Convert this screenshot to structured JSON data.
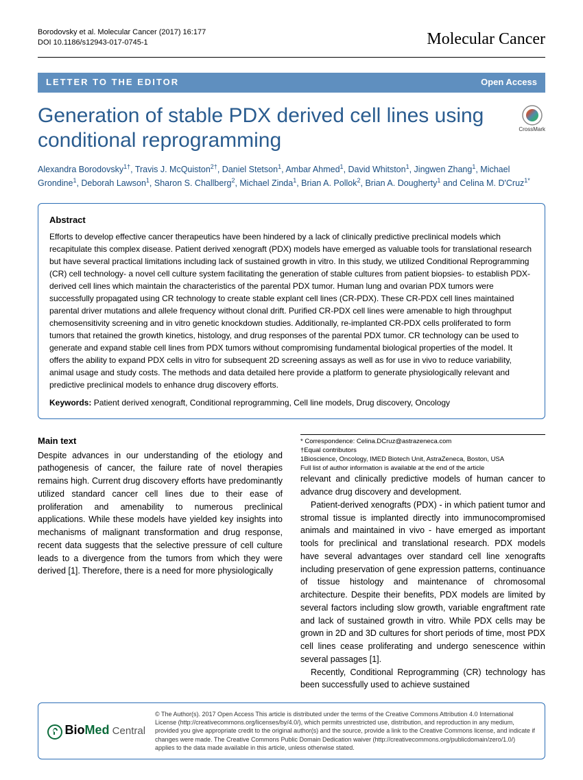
{
  "header": {
    "citation_line1": "Borodovsky et al. Molecular Cancer  (2017) 16:177",
    "citation_line2": "DOI 10.1186/s12943-017-0745-1",
    "journal": "Molecular Cancer"
  },
  "bar": {
    "category": "LETTER TO THE EDITOR",
    "access": "Open Access"
  },
  "title": "Generation of stable PDX derived cell lines using conditional reprogramming",
  "crossmark_label": "CrossMark",
  "authors_html": "Alexandra Borodovsky<sup>1†</sup>, Travis J. McQuiston<sup>2†</sup>, Daniel Stetson<sup>1</sup>, Ambar Ahmed<sup>1</sup>, David Whitston<sup>1</sup>, Jingwen Zhang<sup>1</sup>, Michael Grondine<sup>1</sup>, Deborah Lawson<sup>1</sup>, Sharon S. Challberg<sup>2</sup>, Michael Zinda<sup>1</sup>, Brian A. Pollok<sup>2</sup>, Brian A. Dougherty<sup>1</sup> and Celina M. D'Cruz<sup>1*</sup>",
  "abstract": {
    "heading": "Abstract",
    "body": "Efforts to develop effective cancer therapeutics have been hindered by a lack of clinically predictive preclinical models which recapitulate this complex disease. Patient derived xenograft (PDX) models have emerged as valuable tools for translational research but have several practical limitations including lack of sustained growth in vitro. In this study, we utilized Conditional Reprogramming (CR) cell technology- a novel cell culture system facilitating the generation of stable cultures from patient biopsies- to establish PDX-derived cell lines which maintain the characteristics of the parental PDX tumor. Human lung and ovarian PDX tumors were successfully propagated using CR technology to create stable explant cell lines (CR-PDX). These CR-PDX cell lines maintained parental driver mutations and allele frequency without clonal drift. Purified CR-PDX cell lines were amenable to high throughput chemosensitivity screening and in vitro genetic knockdown studies. Additionally, re-implanted CR-PDX cells proliferated to form tumors that retained the growth kinetics, histology, and drug responses of the parental PDX tumor. CR technology can be used to generate and expand stable cell lines from PDX tumors without compromising fundamental biological properties of the model. It offers the ability to expand PDX cells in vitro for subsequent 2D screening assays as well as for use in vivo to reduce variability, animal usage and study costs. The methods and data detailed here provide a platform to generate physiologically relevant and predictive preclinical models to enhance drug discovery efforts.",
    "keywords_label": "Keywords:",
    "keywords": " Patient derived xenograft, Conditional reprogramming, Cell line models, Drug discovery, Oncology"
  },
  "main": {
    "heading": "Main text",
    "p1": "Despite advances in our understanding of the etiology and pathogenesis of cancer, the failure rate of novel therapies remains high. Current drug discovery efforts have predominantly utilized standard cancer cell lines due to their ease of proliferation and amenability to numerous preclinical applications. While these models have yielded key insights into mechanisms of malignant transformation and drug response, recent data suggests that the selective pressure of cell culture leads to a divergence from the tumors from which they were derived [1]. Therefore, there is a need for more physiologically",
    "p2": "relevant and clinically predictive models of human cancer to advance drug discovery and development.",
    "p3": "Patient-derived xenografts (PDX) - in which patient tumor and stromal tissue is implanted directly into immunocompromised animals and maintained in vivo - have emerged as important tools for preclinical and translational research. PDX models have several advantages over standard cell line xenografts including preservation of gene expression patterns, continuance of tissue histology and maintenance of chromosomal architecture. Despite their benefits, PDX models are limited by several factors including slow growth, variable engraftment rate and lack of sustained growth in vitro. While PDX cells may be grown in 2D and 3D cultures for short periods of time, most PDX cell lines cease proliferating and undergo senescence within several passages [1].",
    "p4": "Recently, Conditional Reprogramming (CR) technology has been successfully used to achieve sustained"
  },
  "correspondence": {
    "line1": "* Correspondence: Celina.DCruz@astrazeneca.com",
    "line2": "†Equal contributors",
    "line3": "1Bioscience, Oncology, IMED Biotech Unit, AstraZeneca, Boston, USA",
    "line4": "Full list of author information is available at the end of the article"
  },
  "footer": {
    "logo_text_bio": "BioMed",
    "logo_text_central": " Central",
    "license": "© The Author(s). 2017 Open Access This article is distributed under the terms of the Creative Commons Attribution 4.0 International License (http://creativecommons.org/licenses/by/4.0/), which permits unrestricted use, distribution, and reproduction in any medium, provided you give appropriate credit to the original author(s) and the source, provide a link to the Creative Commons license, and indicate if changes were made. The Creative Commons Public Domain Dedication waiver (http://creativecommons.org/publicdomain/zero/1.0/) applies to the data made available in this article, unless otherwise stated."
  },
  "colors": {
    "bar_bg": "#5f8fbf",
    "title_color": "#2a5c8f",
    "box_border": "#2a6db5"
  }
}
